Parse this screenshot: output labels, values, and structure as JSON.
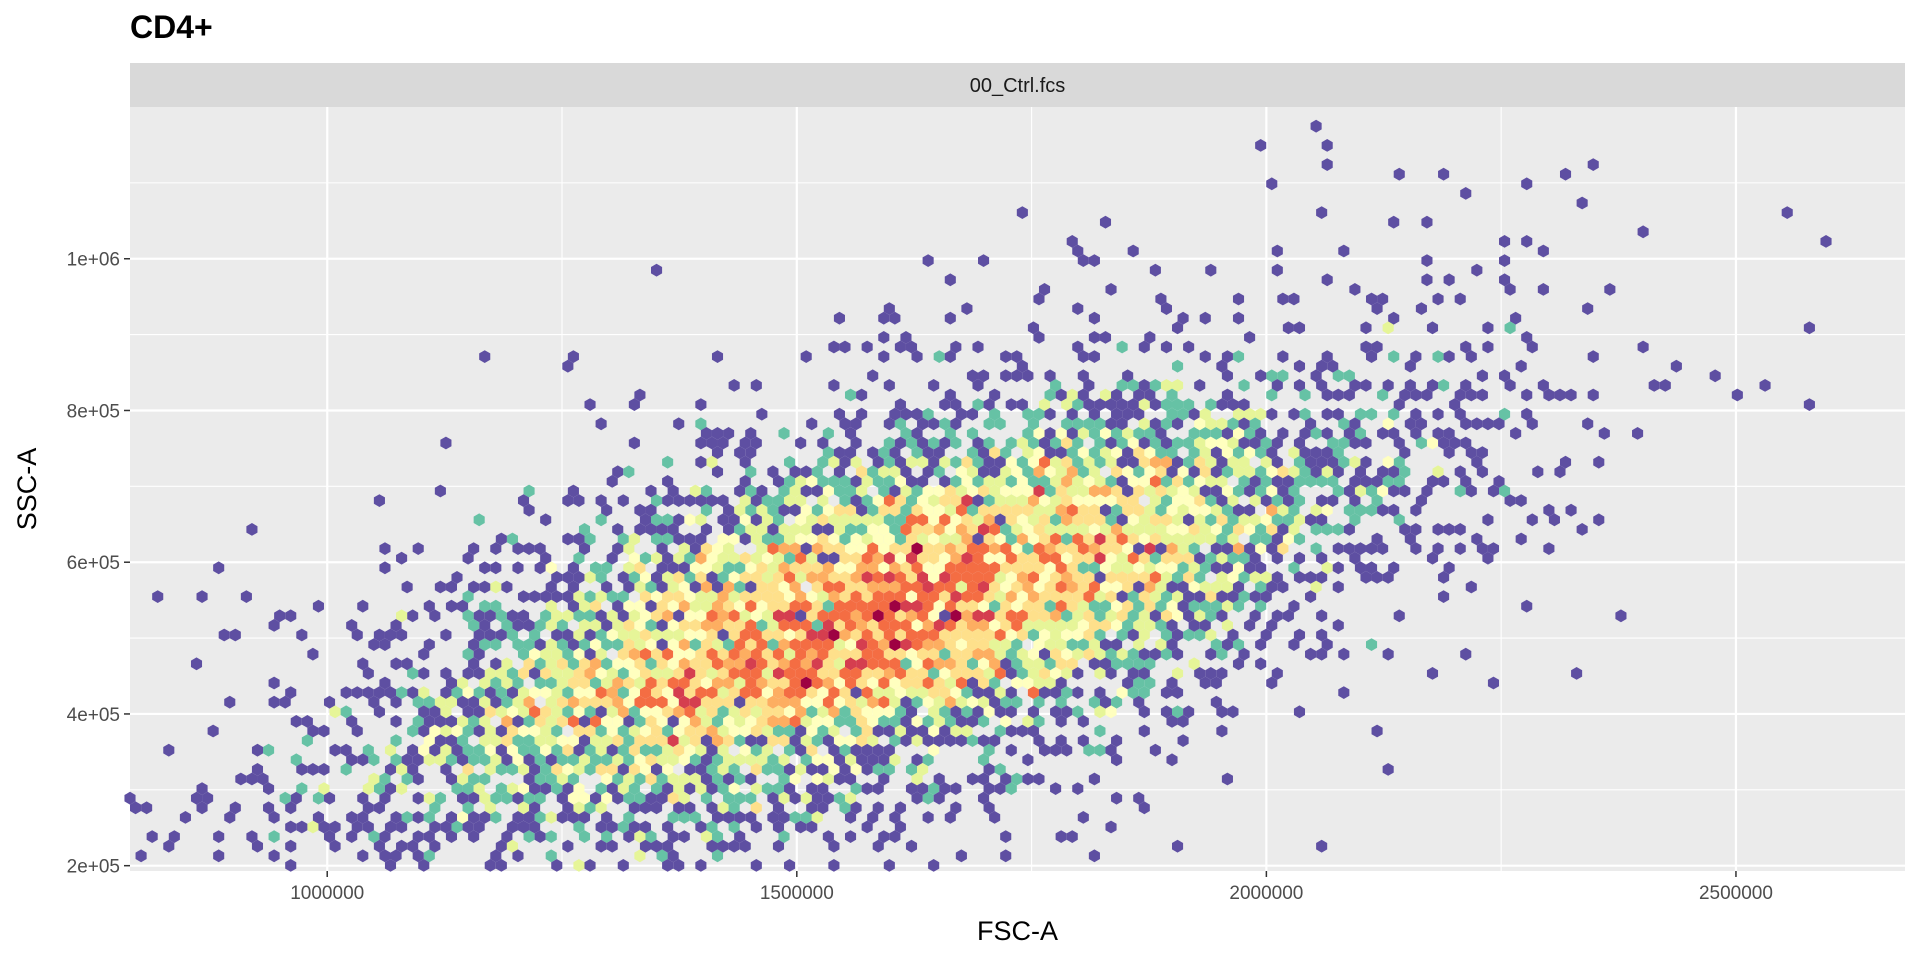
{
  "chart_data": {
    "type": "heatmap",
    "subtype": "hexbin",
    "title": "CD4+",
    "facet_label": "00_Ctrl.fcs",
    "xlabel": "FSC-A",
    "ylabel": "SSC-A",
    "xlim": [
      790000,
      2680000
    ],
    "ylim": [
      193000,
      1200000
    ],
    "x_ticks": [
      1000000,
      1500000,
      2000000,
      2500000
    ],
    "x_tick_labels": [
      "1000000",
      "1500000",
      "2000000",
      "2500000"
    ],
    "y_ticks": [
      200000,
      400000,
      600000,
      800000,
      1000000
    ],
    "y_tick_labels": [
      "2e+05",
      "4e+05",
      "6e+05",
      "8e+05",
      "1e+06"
    ],
    "grid": true,
    "legend": "none",
    "colormap": "Spectral (reversed): low density purple, high density red",
    "colors": [
      "#5e4fa2",
      "#3288bd",
      "#66c2a5",
      "#abdda4",
      "#e6f598",
      "#ffffbf",
      "#fee08b",
      "#fdae61",
      "#f46d43",
      "#d53e4f",
      "#9e0142"
    ],
    "density_model": {
      "center": [
        1580000,
        530000
      ],
      "sd_major": 250000,
      "sd_minor": 45000,
      "correlation_angle_deg": 18
    },
    "outlier_points": [
      [
        2600000,
        1028000
      ],
      [
        2350000,
        1120000
      ],
      [
        2280000,
        1105000
      ],
      [
        2070000,
        1145000
      ],
      [
        2000000,
        1100000
      ],
      [
        2060000,
        1060000
      ],
      [
        2140000,
        1050000
      ],
      [
        2170000,
        1043000
      ],
      [
        2300000,
        1010000
      ],
      [
        2080000,
        1010000
      ],
      [
        2220000,
        980000
      ],
      [
        2190000,
        970000
      ],
      [
        2230000,
        735000
      ],
      [
        2320000,
        735000
      ],
      [
        2250000,
        695000
      ],
      [
        2280000,
        820000
      ],
      [
        2310000,
        655000
      ],
      [
        2270000,
        630000
      ],
      [
        2190000,
        595000
      ],
      [
        1990000,
        488000
      ],
      [
        1030000,
        236000
      ],
      [
        1300000,
        243000
      ],
      [
        1700000,
        998000
      ],
      [
        1805000,
        998000
      ]
    ]
  }
}
